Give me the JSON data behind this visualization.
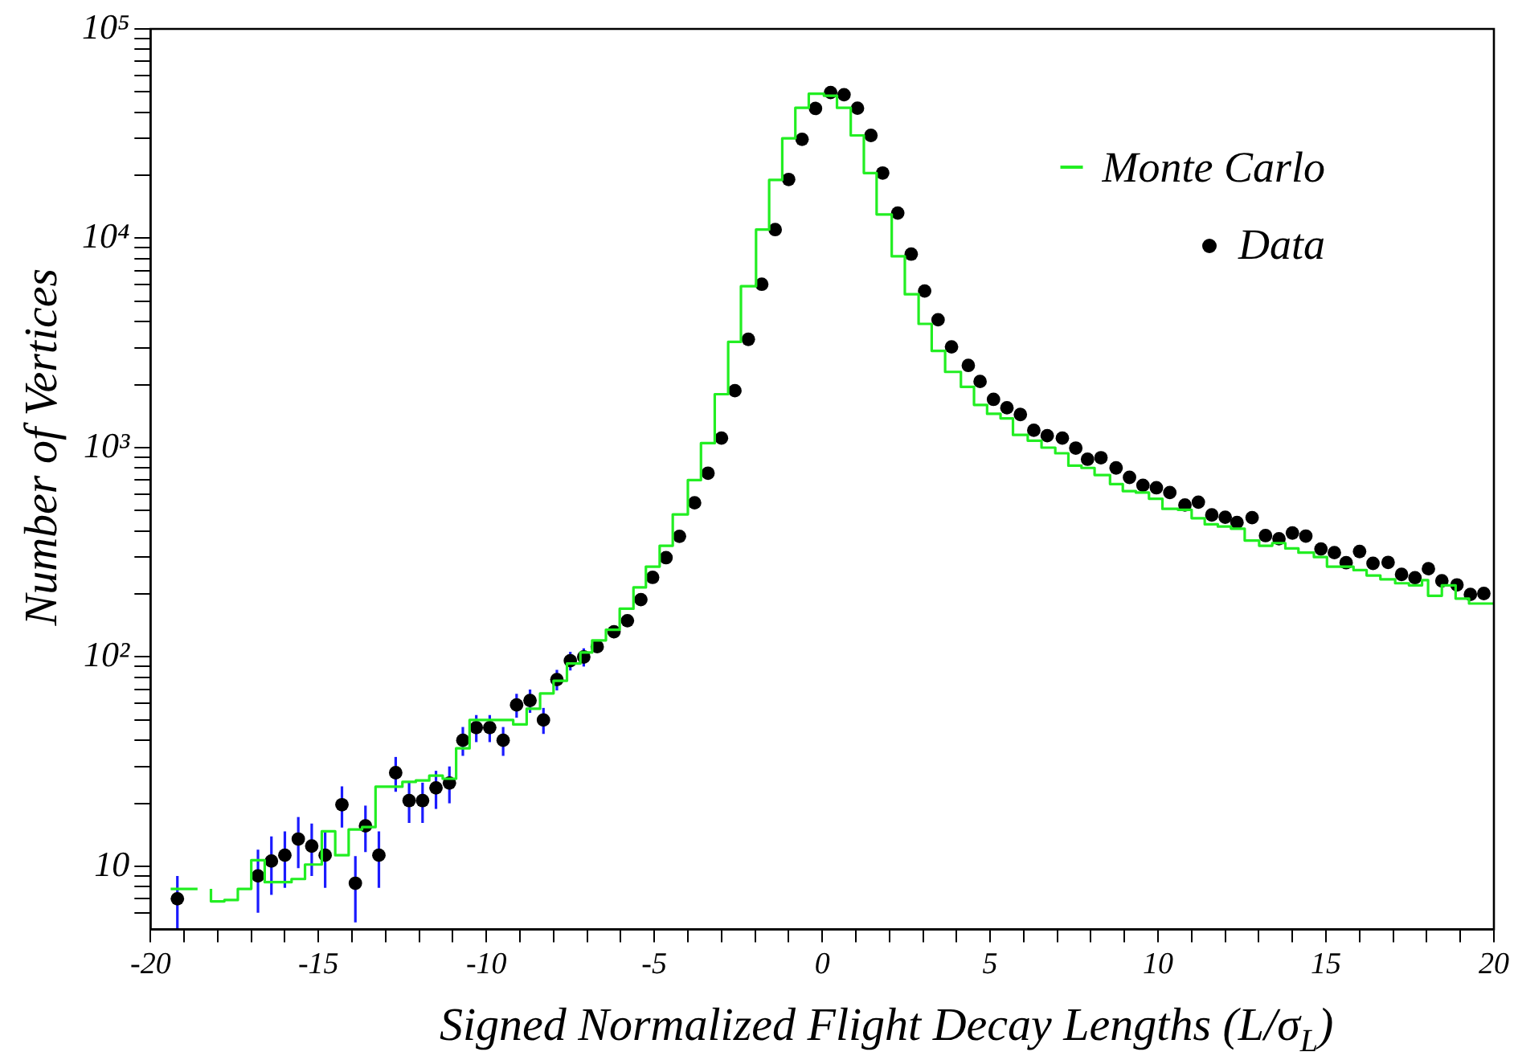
{
  "chart_data": {
    "type": "scatter",
    "xlabel": "Signed Normalized Flight Decay Lengths (L/σ$_{L}$)",
    "ylabel": "Number of Vertices",
    "log": "y",
    "grid": false,
    "legend": "top right",
    "xlim": [
      -20,
      20
    ],
    "ylim": [
      5,
      100000
    ],
    "xticks": [
      -20,
      {
        "value": -19,
        "label": null
      },
      {
        "value": -18,
        "label": null
      },
      {
        "value": -17,
        "label": null
      },
      {
        "value": -16,
        "label": null
      },
      -15,
      {
        "value": -14,
        "label": null
      },
      {
        "value": -13,
        "label": null
      },
      {
        "value": -12,
        "label": null
      },
      {
        "value": -11,
        "label": null
      },
      -10,
      {
        "value": -9,
        "label": null
      },
      {
        "value": -8,
        "label": null
      },
      {
        "value": -7,
        "label": null
      },
      {
        "value": -6,
        "label": null
      },
      -5,
      {
        "value": -4,
        "label": null
      },
      {
        "value": -3,
        "label": null
      },
      {
        "value": -2,
        "label": null
      },
      {
        "value": -1,
        "label": null
      },
      0,
      {
        "value": 1,
        "label": null
      },
      {
        "value": 2,
        "label": null
      },
      {
        "value": 3,
        "label": null
      },
      {
        "value": 4,
        "label": null
      },
      5,
      {
        "value": 6,
        "label": null
      },
      {
        "value": 7,
        "label": null
      },
      {
        "value": 8,
        "label": null
      },
      {
        "value": 9,
        "label": null
      },
      10,
      {
        "value": 11,
        "label": null
      },
      {
        "value": 12,
        "label": null
      },
      {
        "value": 13,
        "label": null
      },
      {
        "value": 14,
        "label": null
      },
      15,
      {
        "value": 16,
        "label": null
      },
      {
        "value": 17,
        "label": null
      },
      {
        "value": 18,
        "label": null
      },
      {
        "value": 19,
        "label": null
      },
      20
    ],
    "yticks": [
      {
        "value": 6,
        "label": null
      },
      {
        "value": 7,
        "label": null
      },
      {
        "value": 8,
        "label": null
      },
      {
        "value": 9,
        "label": null
      },
      10,
      {
        "value": 20,
        "label": null
      },
      {
        "value": 30,
        "label": null
      },
      {
        "value": 40,
        "label": null
      },
      {
        "value": 50,
        "label": null
      },
      {
        "value": 60,
        "label": null
      },
      {
        "value": 70,
        "label": null
      },
      {
        "value": 80,
        "label": null
      },
      {
        "value": 90,
        "label": null
      },
      {
        "value": 100,
        "label": "10²"
      },
      {
        "value": 200,
        "label": null
      },
      {
        "value": 300,
        "label": null
      },
      {
        "value": 400,
        "label": null
      },
      {
        "value": 500,
        "label": null
      },
      {
        "value": 600,
        "label": null
      },
      {
        "value": 700,
        "label": null
      },
      {
        "value": 800,
        "label": null
      },
      {
        "value": 900,
        "label": null
      },
      {
        "value": 1000,
        "label": "10³"
      },
      {
        "value": 2000,
        "label": null
      },
      {
        "value": 3000,
        "label": null
      },
      {
        "value": 4000,
        "label": null
      },
      {
        "value": 5000,
        "label": null
      },
      {
        "value": 6000,
        "label": null
      },
      {
        "value": 7000,
        "label": null
      },
      {
        "value": 8000,
        "label": null
      },
      {
        "value": 9000,
        "label": null
      },
      {
        "value": 10000,
        "label": "10⁴"
      },
      {
        "value": 20000,
        "label": null
      },
      {
        "value": 30000,
        "label": null
      },
      {
        "value": 40000,
        "label": null
      },
      {
        "value": 50000,
        "label": null
      },
      {
        "value": 60000,
        "label": null
      },
      {
        "value": 70000,
        "label": null
      },
      {
        "value": 80000,
        "label": null
      },
      {
        "value": 90000,
        "label": null
      },
      {
        "value": 100000,
        "label": "10⁵"
      }
    ],
    "series": [
      {
        "name": "Monte Carlo",
        "type": "step",
        "marker": "none",
        "color": "#22ee22",
        "x": [
          -19.4,
          -18.6,
          -18.2,
          -17.8,
          -17.4,
          -17.0,
          -16.6,
          -15.8,
          -15.4,
          -14.9,
          -14.5,
          -14.1,
          -13.7,
          -13.3,
          -12.5,
          -12.1,
          -11.7,
          -11.3,
          -10.9,
          -10.5,
          -9.2,
          -8.8,
          -8.4,
          -8.0,
          -7.6,
          -7.2,
          -6.85,
          -6.44,
          -6.03,
          -5.62,
          -5.25,
          -4.84,
          -4.45,
          -4.0,
          -3.61,
          -3.2,
          -2.8,
          -2.42,
          -1.97,
          -1.58,
          -1.19,
          -0.8,
          -0.4,
          0.05,
          0.44,
          0.85,
          1.24,
          1.62,
          2.07,
          2.46,
          2.87,
          3.26,
          3.66,
          4.13,
          4.52,
          4.91,
          5.31,
          5.68,
          6.12,
          6.53,
          6.94,
          7.33,
          7.72,
          8.11,
          8.57,
          8.95,
          9.34,
          9.73,
          10.13,
          10.59,
          11.0,
          11.39,
          11.78,
          12.17,
          12.58,
          13.01,
          13.4,
          13.79,
          14.18,
          14.64,
          15.03,
          15.42,
          15.82,
          16.21,
          16.62,
          17.06,
          17.47,
          17.86,
          18.04,
          18.45,
          18.86,
          19.26,
          19.67,
          20.0
        ],
        "values": [
          7.8,
          null,
          7.8,
          6.8,
          6.9,
          7.8,
          10.7,
          8.4,
          8.7,
          10.2,
          14.7,
          11.3,
          15,
          15.4,
          24,
          25.3,
          25.7,
          27.1,
          26.2,
          36.6,
          50,
          47.6,
          56.6,
          67,
          77,
          93,
          105,
          120,
          135,
          170,
          215,
          270,
          340,
          480,
          700,
          1050,
          1800,
          3200,
          5900,
          11000,
          19000,
          30000,
          42000,
          49000,
          48000,
          42000,
          31000,
          20500,
          13000,
          8200,
          5400,
          3900,
          2900,
          2300,
          1950,
          1600,
          1450,
          1380,
          1150,
          1080,
          1000,
          940,
          820,
          800,
          740,
          670,
          620,
          610,
          570,
          510,
          505,
          460,
          430,
          420,
          410,
          360,
          340,
          350,
          330,
          315,
          300,
          270,
          270,
          260,
          245,
          235,
          225,
          220,
          233,
          196,
          220,
          190,
          180,
          180
        ]
      },
      {
        "name": "Data",
        "marker": "circle",
        "color": "#000000",
        "x": [
          -19.2,
          -16.8,
          -16.4,
          -16.0,
          -15.6,
          -15.2,
          -14.8,
          -14.3,
          -13.9,
          -13.6,
          -13.2,
          -12.7,
          -12.3,
          -11.9,
          -11.5,
          -11.1,
          -10.7,
          -10.3,
          -9.9,
          -9.5,
          -9.1,
          -8.7,
          -8.3,
          -7.9,
          -7.5,
          -7.1,
          -6.7,
          -6.2,
          -5.8,
          -5.4,
          -5.05,
          -4.65,
          -4.25,
          -3.8,
          -3.4,
          -3.0,
          -2.6,
          -2.2,
          -1.8,
          -1.4,
          -1.0,
          -0.6,
          -0.2,
          0.25,
          0.65,
          1.05,
          1.45,
          1.8,
          2.25,
          2.65,
          3.05,
          3.45,
          3.85,
          4.35,
          4.7,
          5.1,
          5.5,
          5.9,
          6.3,
          6.7,
          7.15,
          7.55,
          7.9,
          8.3,
          8.75,
          9.15,
          9.55,
          9.95,
          10.35,
          10.8,
          11.2,
          11.6,
          12.0,
          12.35,
          12.8,
          13.2,
          13.6,
          14.0,
          14.4,
          14.85,
          15.25,
          15.6,
          16.0,
          16.4,
          16.85,
          17.25,
          17.65,
          18.05,
          18.45,
          18.9,
          19.3,
          19.7
        ],
        "values": [
          7,
          9,
          10.6,
          11.3,
          13.5,
          12.5,
          11.3,
          19.7,
          8.3,
          15.6,
          11.3,
          28,
          20.6,
          20.6,
          23.7,
          25,
          40,
          46,
          46,
          40,
          59,
          62,
          50,
          78,
          96,
          100,
          112,
          132,
          149,
          188,
          240,
          298,
          377,
          545,
          755,
          1110,
          1870,
          3290,
          6030,
          11000,
          19100,
          29700,
          41700,
          49700,
          48500,
          41800,
          31000,
          20500,
          13200,
          8400,
          5600,
          4080,
          3030,
          2470,
          2070,
          1700,
          1550,
          1440,
          1210,
          1140,
          1110,
          995,
          880,
          895,
          800,
          721,
          661,
          643,
          610,
          532,
          549,
          477,
          465,
          439,
          463,
          380,
          367,
          391,
          378,
          328,
          315,
          282,
          319,
          280,
          283,
          248,
          239,
          264,
          231,
          221,
          199,
          201
        ],
        "errors": [
          2,
          3,
          3.3,
          3.4,
          3.7,
          3.5,
          3.4,
          4.4,
          2.9,
          3.9,
          3.4,
          5.3,
          4.5,
          4.5,
          4.9,
          5,
          6.3,
          6.8,
          6.8,
          6.3,
          7.7,
          7.9,
          7.1,
          8.8,
          9.8,
          10,
          null,
          null,
          null,
          null,
          null,
          null,
          null,
          null,
          null,
          null,
          null,
          null,
          null,
          null,
          null,
          null,
          null,
          null,
          null,
          null,
          null,
          null,
          null,
          null,
          null,
          null,
          null,
          null,
          null,
          null,
          null,
          null,
          null,
          null,
          null,
          null,
          null,
          null,
          null,
          null,
          null,
          null,
          null,
          null,
          null,
          null,
          null,
          null,
          null,
          null,
          null,
          null,
          null,
          null,
          null,
          null,
          null,
          null,
          null,
          null,
          null,
          null,
          null,
          null,
          null,
          null
        ]
      }
    ]
  }
}
